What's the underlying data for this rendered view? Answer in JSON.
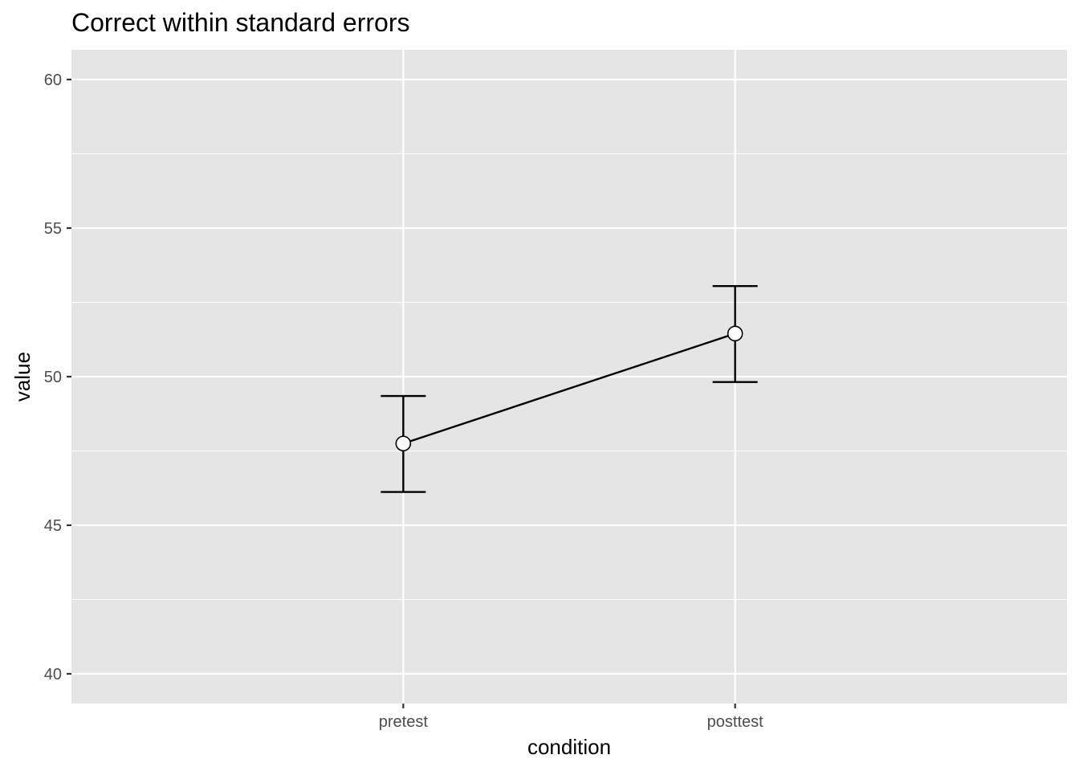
{
  "chart_data": {
    "type": "line",
    "title": "Correct within standard errors",
    "xlabel": "condition",
    "ylabel": "value",
    "categories": [
      "pretest",
      "posttest"
    ],
    "values": [
      47.75,
      51.45
    ],
    "error_lower": [
      46.12,
      49.82
    ],
    "error_upper": [
      49.35,
      53.05
    ],
    "ylim": [
      39,
      61
    ],
    "yticks": [
      40,
      45,
      50,
      55,
      60
    ],
    "ytick_labels": [
      "40",
      "45",
      "50",
      "55",
      "60"
    ],
    "grid": true,
    "colors": {
      "panel_background": "#e5e5e5",
      "grid": "#ffffff",
      "line": "#000000",
      "point_fill": "#ffffff",
      "tick_label": "#4d4d4d",
      "tick_mark": "#333333"
    }
  }
}
